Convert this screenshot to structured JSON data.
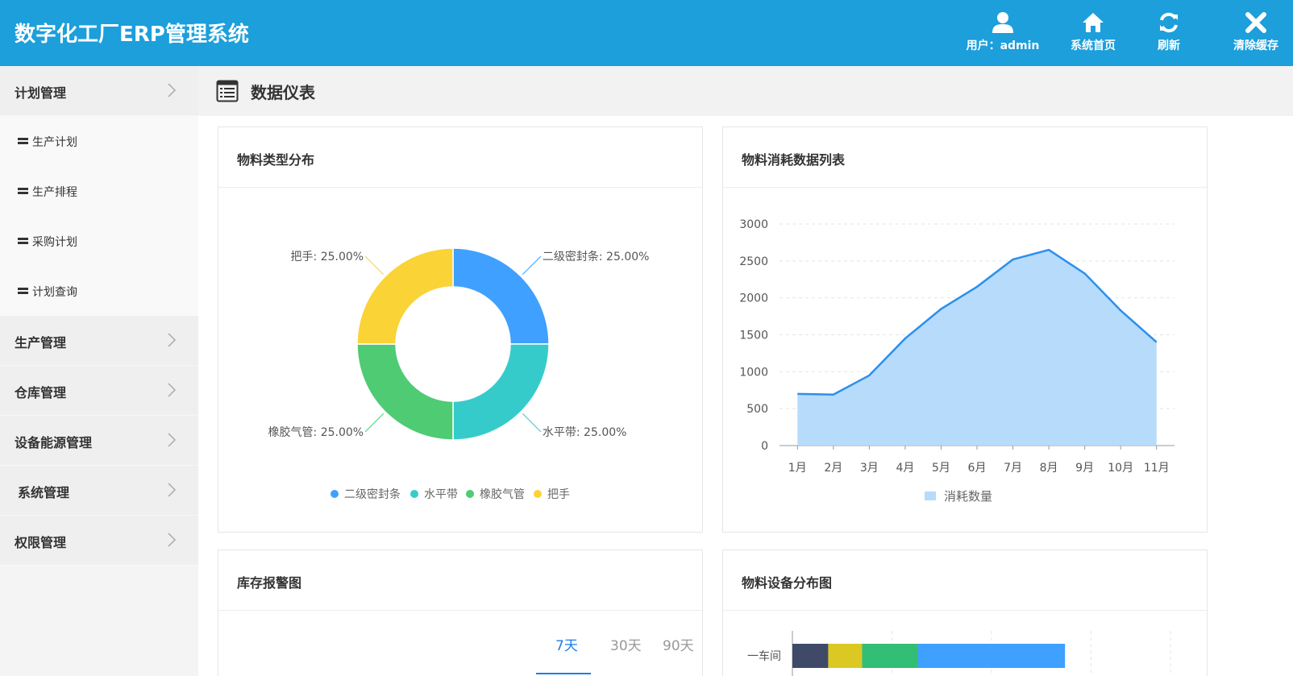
{
  "app": {
    "title": "数字化工厂ERP管理系统"
  },
  "header_buttons": [
    {
      "icon": "user-icon",
      "label": "用户：admin"
    },
    {
      "icon": "home-icon",
      "label": "系统首页"
    },
    {
      "icon": "refresh-icon",
      "label": "刷新"
    },
    {
      "icon": "close-icon",
      "label": "清除缓存"
    }
  ],
  "sidebar": {
    "groups": [
      {
        "label": "计划管理",
        "expanded": true,
        "items": [
          "生产计划",
          "生产排程",
          "采购计划",
          "计划查询"
        ]
      },
      {
        "label": "生产管理"
      },
      {
        "label": "仓库管理"
      },
      {
        "label": "设备能源管理"
      },
      {
        "label": "系统管理"
      },
      {
        "label": "权限管理"
      }
    ]
  },
  "page": {
    "title": "数据仪表"
  },
  "cards": {
    "pie_title": "物料类型分布",
    "line_title": "物料消耗数据列表",
    "stock_title": "库存报警图",
    "equip_title": "物料设备分布图"
  },
  "stock_tabs": {
    "items": [
      "7天",
      "30天",
      "90天"
    ],
    "active": "7天"
  },
  "colors": {
    "header": "#1c9fdb",
    "active_tab": "#1c7ee6",
    "area_fill": "#b6dbfb",
    "line": "#2b8fee"
  },
  "chart_data": [
    {
      "type": "pie",
      "donut": true,
      "categories": [
        "二级密封条",
        "水平带",
        "橡胶气管",
        "把手"
      ],
      "values": [
        25.0,
        25.0,
        25.0,
        25.0
      ],
      "slice_labels": [
        "二级密封条: 25.00%",
        "水平带: 25.00%",
        "橡胶气管: 25.00%",
        "把手: 25.00%"
      ],
      "colors": [
        "#3fa0ff",
        "#36cbcb",
        "#4ecb73",
        "#fad337"
      ],
      "legend": "bottom"
    },
    {
      "type": "area",
      "categories": [
        "1月",
        "2月",
        "3月",
        "4月",
        "5月",
        "6月",
        "7月",
        "8月",
        "9月",
        "10月",
        "11月"
      ],
      "series": [
        {
          "name": "消耗数量",
          "values": [
            700,
            690,
            950,
            1450,
            1850,
            2150,
            2520,
            2650,
            2330,
            1830,
            1400
          ]
        }
      ],
      "ylim": [
        0,
        3000
      ],
      "yticks": [
        0,
        500,
        1000,
        1500,
        2000,
        2500,
        3000
      ],
      "grid": true,
      "legend": "bottom"
    },
    {
      "type": "bar",
      "orientation": "horizontal",
      "stacked": true,
      "categories": [
        "一车间"
      ],
      "series": [
        {
          "color": "#3e4a68",
          "values": [
            18
          ]
        },
        {
          "color": "#dbc822",
          "values": [
            17
          ]
        },
        {
          "color": "#32be74",
          "values": [
            28
          ]
        },
        {
          "color": "#3fa0ff",
          "values": [
            74
          ]
        }
      ]
    }
  ]
}
